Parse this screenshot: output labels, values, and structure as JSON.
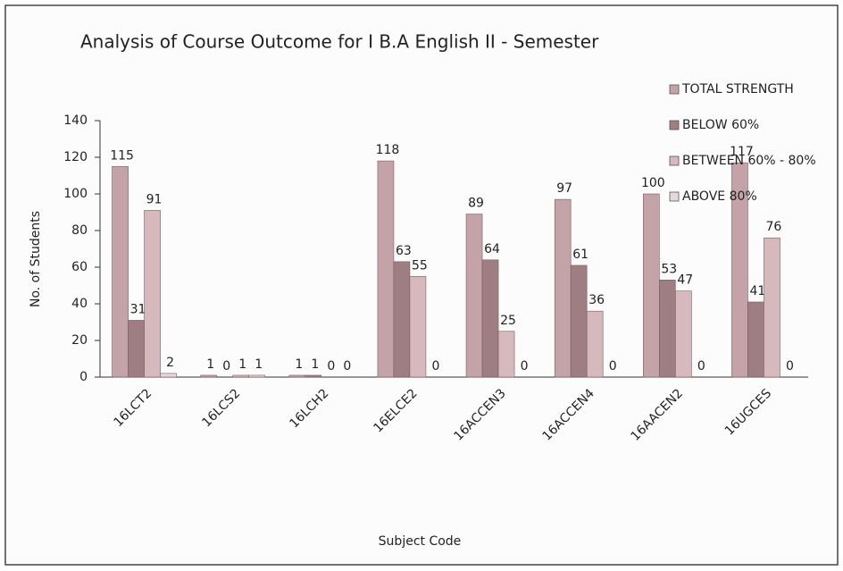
{
  "chart_data": {
    "type": "bar",
    "title": "Analysis  of Course Outcome for I B.A English II - Semester",
    "x_label": "Subject Code",
    "y_label": "No. of Students",
    "categories": [
      "16LCT2",
      "16LCS2",
      "16LCH2",
      "16ELCE2",
      "16ACCEN3",
      "16ACCEN4",
      "16AACEN2",
      "16UGCES"
    ],
    "series": [
      {
        "name": "TOTAL STRENGTH",
        "color": "#c4a3a8",
        "values": [
          115,
          1,
          1,
          118,
          89,
          97,
          100,
          117
        ]
      },
      {
        "name": "BELOW 60%",
        "color": "#9e7d83",
        "values": [
          31,
          0,
          1,
          63,
          64,
          61,
          53,
          41
        ]
      },
      {
        "name": "BETWEEN 60% - 80%",
        "color": "#d6b9bd",
        "values": [
          91,
          1,
          0,
          55,
          25,
          36,
          47,
          76
        ]
      },
      {
        "name": "ABOVE 80%",
        "color": "#e6d8da",
        "values": [
          2,
          1,
          0,
          0,
          0,
          0,
          0,
          0
        ]
      }
    ],
    "ylim": [
      0,
      140
    ],
    "yticks": [
      0,
      20,
      40,
      60,
      80,
      100,
      120,
      140
    ],
    "grid": false,
    "legend": "top-right"
  }
}
